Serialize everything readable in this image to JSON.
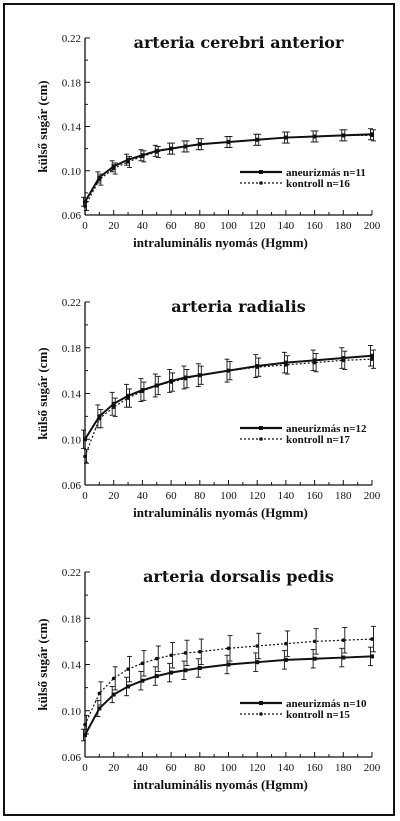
{
  "chart_data": [
    {
      "type": "line",
      "title": "arteria  cerebri  anterior",
      "xlabel": "intraluminális nyomás (Hgmm)",
      "ylabel": "külső sugár (cm)",
      "xlim": [
        0,
        200
      ],
      "ylim": [
        0.06,
        0.22
      ],
      "xticks": [
        0,
        20,
        40,
        60,
        80,
        100,
        120,
        140,
        160,
        180,
        200
      ],
      "yticks": [
        0.06,
        0.1,
        0.14,
        0.18,
        0.22
      ],
      "ytick_labels": [
        "0.06",
        "0.10",
        "0.14",
        "0.18",
        "0.22"
      ],
      "x": [
        0,
        10,
        20,
        30,
        40,
        50,
        60,
        70,
        80,
        100,
        120,
        140,
        160,
        180,
        200
      ],
      "legend_position": "right",
      "series": [
        {
          "name": "aneurizmás n=11",
          "style": "solid",
          "values": [
            0.072,
            0.094,
            0.104,
            0.11,
            0.114,
            0.118,
            0.12,
            0.122,
            0.124,
            0.126,
            0.128,
            0.13,
            0.131,
            0.132,
            0.133
          ],
          "errors": [
            0.004,
            0.005,
            0.005,
            0.005,
            0.005,
            0.005,
            0.005,
            0.005,
            0.005,
            0.005,
            0.005,
            0.005,
            0.005,
            0.005,
            0.005
          ]
        },
        {
          "name": "kontroll n=16",
          "style": "dotted",
          "values": [
            0.068,
            0.092,
            0.102,
            0.108,
            0.113,
            0.117,
            0.12,
            0.122,
            0.124,
            0.126,
            0.128,
            0.13,
            0.131,
            0.132,
            0.132
          ],
          "errors": [
            0.004,
            0.005,
            0.005,
            0.005,
            0.005,
            0.005,
            0.005,
            0.005,
            0.005,
            0.005,
            0.005,
            0.005,
            0.005,
            0.005,
            0.005
          ]
        }
      ]
    },
    {
      "type": "line",
      "title": "arteria  radialis",
      "xlabel": "intraluminális nyomás (Hgmm)",
      "ylabel": "külső sugár (cm)",
      "xlim": [
        0,
        200
      ],
      "ylim": [
        0.06,
        0.22
      ],
      "xticks": [
        0,
        20,
        40,
        60,
        80,
        100,
        120,
        140,
        160,
        180,
        200
      ],
      "yticks": [
        0.06,
        0.1,
        0.14,
        0.18,
        0.22
      ],
      "ytick_labels": [
        "0.06",
        "0.10",
        "0.14",
        "0.18",
        "0.22"
      ],
      "x": [
        0,
        10,
        20,
        30,
        40,
        50,
        60,
        70,
        80,
        100,
        120,
        140,
        160,
        180,
        200
      ],
      "legend_position": "right",
      "series": [
        {
          "name": "aneurizmás n=12",
          "style": "solid",
          "values": [
            0.1,
            0.12,
            0.131,
            0.138,
            0.143,
            0.147,
            0.151,
            0.154,
            0.156,
            0.16,
            0.164,
            0.167,
            0.169,
            0.171,
            0.173
          ],
          "errors": [
            0.008,
            0.01,
            0.01,
            0.01,
            0.01,
            0.01,
            0.01,
            0.01,
            0.01,
            0.01,
            0.01,
            0.009,
            0.009,
            0.009,
            0.009
          ]
        },
        {
          "name": "kontroll n=17",
          "style": "dotted",
          "values": [
            0.085,
            0.118,
            0.128,
            0.136,
            0.142,
            0.147,
            0.15,
            0.153,
            0.156,
            0.16,
            0.163,
            0.165,
            0.167,
            0.169,
            0.17
          ],
          "errors": [
            0.006,
            0.008,
            0.008,
            0.008,
            0.008,
            0.008,
            0.008,
            0.008,
            0.008,
            0.008,
            0.008,
            0.008,
            0.008,
            0.008,
            0.008
          ]
        }
      ]
    },
    {
      "type": "line",
      "title": "arteria  dorsalis pedis",
      "xlabel": "intraluminális nyomás (Hgmm)",
      "ylabel": "külső sugár (cm)",
      "xlim": [
        0,
        200
      ],
      "ylim": [
        0.06,
        0.22
      ],
      "xticks": [
        0,
        20,
        40,
        60,
        80,
        100,
        120,
        140,
        160,
        180,
        200
      ],
      "yticks": [
        0.06,
        0.1,
        0.14,
        0.18,
        0.22
      ],
      "ytick_labels": [
        "0.06",
        "0.10",
        "0.14",
        "0.18",
        "0.22"
      ],
      "x": [
        0,
        10,
        20,
        30,
        40,
        50,
        60,
        70,
        80,
        100,
        120,
        140,
        160,
        180,
        200
      ],
      "legend_position": "right",
      "series": [
        {
          "name": "aneurizmás n=10",
          "style": "solid",
          "values": [
            0.079,
            0.102,
            0.114,
            0.121,
            0.126,
            0.13,
            0.133,
            0.135,
            0.137,
            0.14,
            0.142,
            0.144,
            0.145,
            0.146,
            0.147
          ],
          "errors": [
            0.005,
            0.007,
            0.007,
            0.008,
            0.008,
            0.008,
            0.008,
            0.008,
            0.008,
            0.008,
            0.008,
            0.008,
            0.008,
            0.008,
            0.008
          ]
        },
        {
          "name": "kontroll n=15",
          "style": "dotted",
          "values": [
            0.088,
            0.115,
            0.128,
            0.136,
            0.141,
            0.145,
            0.148,
            0.15,
            0.151,
            0.154,
            0.156,
            0.158,
            0.16,
            0.161,
            0.162
          ],
          "errors": [
            0.008,
            0.01,
            0.01,
            0.011,
            0.011,
            0.011,
            0.011,
            0.011,
            0.011,
            0.011,
            0.011,
            0.011,
            0.011,
            0.011,
            0.011
          ]
        }
      ]
    }
  ]
}
